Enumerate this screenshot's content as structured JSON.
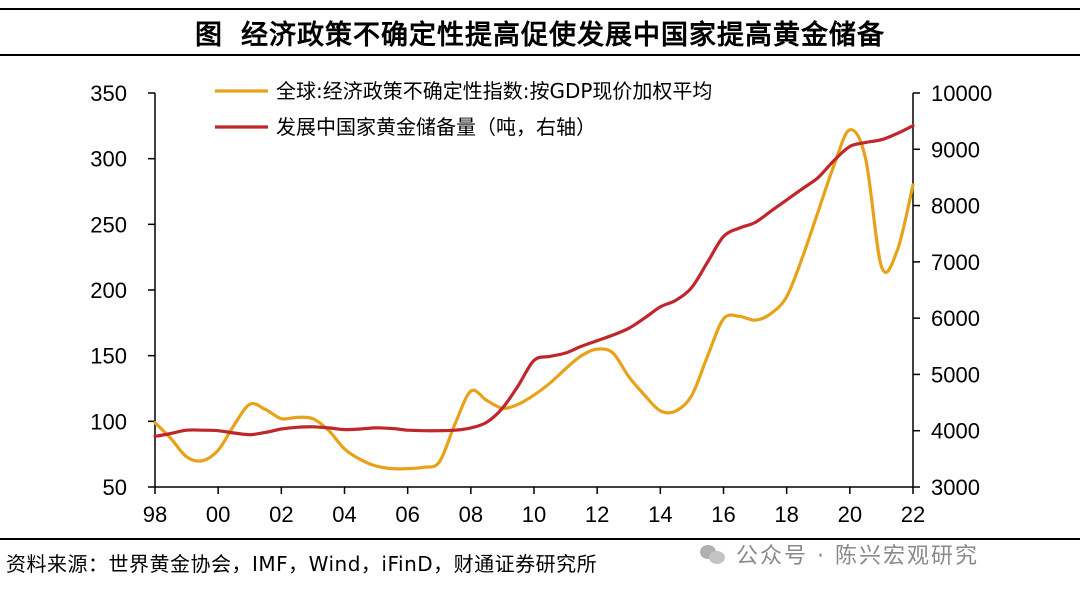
{
  "figure": {
    "label": "图",
    "title": "经济政策不确定性提高促使发展中国家提高黄金储备"
  },
  "source": "资料来源：世界黄金协会，IMF，Wind，iFinD，财通证券研究所",
  "watermark": "公众号 · 陈兴宏观研究",
  "watermark_icon": "wechat-icon",
  "chart_data": {
    "type": "line",
    "x_ticks": [
      "98",
      "00",
      "02",
      "04",
      "06",
      "08",
      "10",
      "12",
      "14",
      "16",
      "18",
      "20",
      "22"
    ],
    "x_range": [
      1998,
      2022
    ],
    "y_left": {
      "range": [
        50,
        350
      ],
      "ticks": [
        50,
        100,
        150,
        200,
        250,
        300,
        350
      ]
    },
    "y_right": {
      "range": [
        3000,
        10000
      ],
      "ticks": [
        3000,
        4000,
        5000,
        6000,
        7000,
        8000,
        9000,
        10000
      ]
    },
    "legend_position": "top-center",
    "grid": false,
    "series": [
      {
        "name": "全球:经济政策不确定性指数:按GDP现价加权平均",
        "axis": "left",
        "color": "#E8A21A",
        "x": [
          1998,
          1998.5,
          1999,
          1999.5,
          2000,
          2000.5,
          2001,
          2001.5,
          2002,
          2002.5,
          2003,
          2003.5,
          2004,
          2004.5,
          2005,
          2005.5,
          2006,
          2006.5,
          2007,
          2007.5,
          2008,
          2008.5,
          2009,
          2009.5,
          2010,
          2010.5,
          2011,
          2011.5,
          2012,
          2012.5,
          2013,
          2013.5,
          2014,
          2014.5,
          2015,
          2015.5,
          2016,
          2016.5,
          2017,
          2017.5,
          2018,
          2018.5,
          2019,
          2019.5,
          2020,
          2020.5,
          2021,
          2021.5,
          2022
        ],
        "values": [
          99,
          87,
          73,
          70,
          78,
          97,
          113,
          109,
          102,
          103,
          102,
          93,
          79,
          71,
          66,
          64,
          64,
          65,
          69,
          98,
          123,
          116,
          110,
          113,
          120,
          129,
          140,
          150,
          155,
          152,
          134,
          120,
          108,
          108,
          120,
          150,
          178,
          180,
          177,
          182,
          195,
          225,
          260,
          295,
          322,
          300,
          218,
          230,
          280
        ]
      },
      {
        "name": "发展中国家黄金储备量（吨，右轴）",
        "axis": "right",
        "color": "#C0272D",
        "x": [
          1998,
          1998.5,
          1999,
          1999.5,
          2000,
          2000.5,
          2001,
          2001.5,
          2002,
          2002.5,
          2003,
          2003.5,
          2004,
          2004.5,
          2005,
          2005.5,
          2006,
          2006.5,
          2007,
          2007.5,
          2008,
          2008.5,
          2009,
          2009.5,
          2010,
          2010.5,
          2011,
          2011.5,
          2012,
          2012.5,
          2013,
          2013.5,
          2014,
          2014.5,
          2015,
          2015.5,
          2016,
          2016.5,
          2017,
          2017.5,
          2018,
          2018.5,
          2019,
          2019.5,
          2020,
          2020.5,
          2021,
          2021.5,
          2022
        ],
        "values": [
          3900,
          3950,
          4010,
          4010,
          4000,
          3960,
          3930,
          3970,
          4030,
          4060,
          4070,
          4050,
          4020,
          4030,
          4050,
          4040,
          4010,
          4000,
          4000,
          4010,
          4050,
          4150,
          4400,
          4800,
          5250,
          5320,
          5380,
          5500,
          5600,
          5700,
          5820,
          6000,
          6200,
          6320,
          6550,
          7000,
          7450,
          7600,
          7700,
          7900,
          8100,
          8300,
          8500,
          8800,
          9050,
          9120,
          9170,
          9280,
          9420
        ]
      }
    ]
  }
}
